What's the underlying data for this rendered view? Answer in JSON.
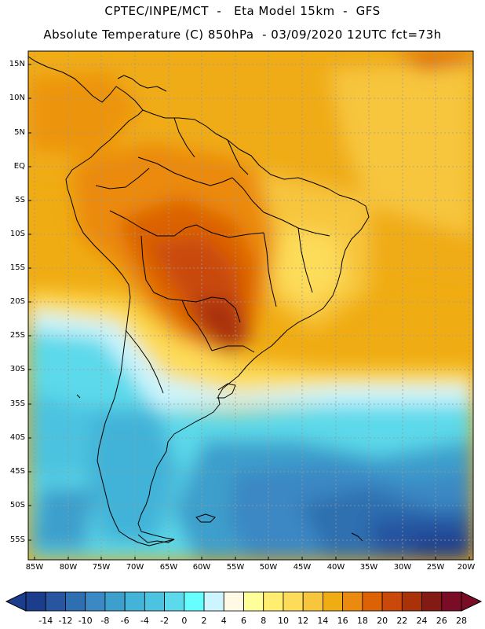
{
  "header": {
    "line1": "CPTEC/INPE/MCT  -   Eta Model 15km  -  GFS",
    "line2": "Absolute Temperature (C) 850hPa  - 03/09/2020 12UTC fct=73h"
  },
  "map": {
    "lat_labels": [
      "15N",
      "10N",
      "5N",
      "EQ",
      "5S",
      "10S",
      "15S",
      "20S",
      "25S",
      "30S",
      "35S",
      "40S",
      "45S",
      "50S",
      "55S"
    ],
    "lon_labels": [
      "85W",
      "80W",
      "75W",
      "70W",
      "65W",
      "60W",
      "55W",
      "50W",
      "45W",
      "40W",
      "35W",
      "30W",
      "25W",
      "20W"
    ],
    "frame_color": "#000000",
    "coastline_color": "#000000",
    "gridline_color": "#9a9a9a"
  },
  "colorbar": {
    "labels": [
      "-14",
      "-12",
      "-10",
      "-8",
      "-6",
      "-4",
      "-2",
      "0",
      "2",
      "4",
      "6",
      "8",
      "10",
      "12",
      "14",
      "16",
      "18",
      "20",
      "22",
      "24",
      "26",
      "28"
    ],
    "colors": [
      "#1c3d8c",
      "#2755a0",
      "#2d6fb0",
      "#3a88c4",
      "#3d9fcc",
      "#43b3d8",
      "#4cc3e0",
      "#5cd9ea",
      "#66ffff",
      "#ccf5ff",
      "#fff9e6",
      "#ffff99",
      "#ffee70",
      "#fddc5a",
      "#f7c63c",
      "#f0ac13",
      "#eb8a0e",
      "#dc6205",
      "#c9480a",
      "#aa3209",
      "#841a14",
      "#7a0d25"
    ]
  }
}
